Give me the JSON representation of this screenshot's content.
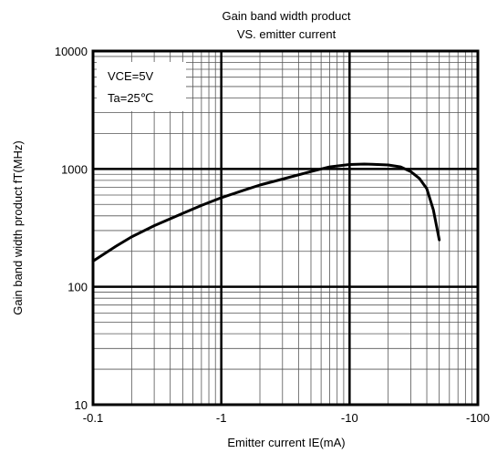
{
  "chart_data": {
    "type": "line",
    "title": "Gain band width product",
    "subtitle": "VS. emitter current",
    "xlabel": "Emitter current IE(mA)",
    "ylabel": "Gain band width product fT(MHz)",
    "xscale": "log",
    "yscale": "log",
    "xlim": [
      -0.1,
      -100
    ],
    "ylim": [
      10,
      10000
    ],
    "x_ticks": [
      "-0.1",
      "-1",
      "-10",
      "-100"
    ],
    "y_ticks": [
      "10",
      "100",
      "1000",
      "10000"
    ],
    "grid": true,
    "annotations": [
      "VCE=5V",
      "Ta=25℃"
    ],
    "series": [
      {
        "x": [
          -0.1,
          -0.15,
          -0.2,
          -0.3,
          -0.5,
          -0.7,
          -1,
          -1.5,
          -2,
          -3,
          -5,
          -7,
          -10,
          -13,
          -15,
          -20,
          -25,
          -30,
          -35,
          -40,
          -45,
          -50
        ],
        "y": [
          165,
          220,
          265,
          330,
          420,
          490,
          570,
          660,
          730,
          820,
          950,
          1040,
          1090,
          1100,
          1095,
          1080,
          1040,
          950,
          830,
          680,
          450,
          250
        ]
      }
    ]
  }
}
